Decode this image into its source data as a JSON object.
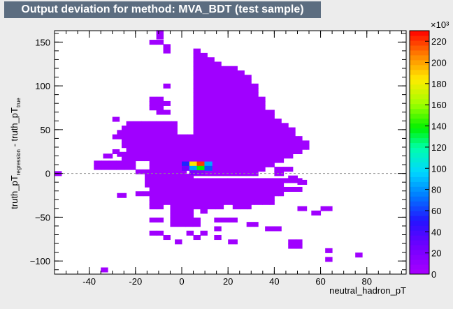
{
  "chart_data": {
    "type": "heatmap",
    "title": "Output deviation for method: MVA_BDT (test sample)",
    "xlabel": "neutral_hadron_pT",
    "ylabel_main": "truth_pT",
    "ylabel_sub1": "regression",
    "ylabel_mid": " - truth_pT",
    "ylabel_sub2": "true",
    "xlim": [
      -55,
      97
    ],
    "ylim": [
      -115,
      163
    ],
    "x_ticks": [
      "-40",
      "-20",
      "0",
      "20",
      "40",
      "60",
      "80"
    ],
    "y_ticks": [
      "-100",
      "-50",
      "0",
      "50",
      "100",
      "150"
    ],
    "colorbar": {
      "range": [
        0,
        230
      ],
      "exponent": "×10³",
      "ticks": [
        "0",
        "20",
        "40",
        "60",
        "80",
        "100",
        "120",
        "140",
        "160",
        "180",
        "200",
        "220"
      ]
    },
    "reference_line_y": 0,
    "bin_size_x": 3.25,
    "bin_size_y": 5.2,
    "hot_cells": [
      {
        "x": 0,
        "y": 11,
        "v": 55
      },
      {
        "x": 3.3,
        "y": 11,
        "v": 185
      },
      {
        "x": 6.5,
        "y": 11,
        "v": 220
      },
      {
        "x": 9.8,
        "y": 11,
        "v": 85
      },
      {
        "x": 0,
        "y": 6,
        "v": 25
      },
      {
        "x": 3.3,
        "y": 6,
        "v": 85
      },
      {
        "x": 6.5,
        "y": 6,
        "v": 140
      },
      {
        "x": 9.8,
        "y": 6,
        "v": 65
      },
      {
        "x": 3.3,
        "y": 1,
        "v": 20
      },
      {
        "x": 6.5,
        "y": 1,
        "v": 15
      }
    ]
  }
}
